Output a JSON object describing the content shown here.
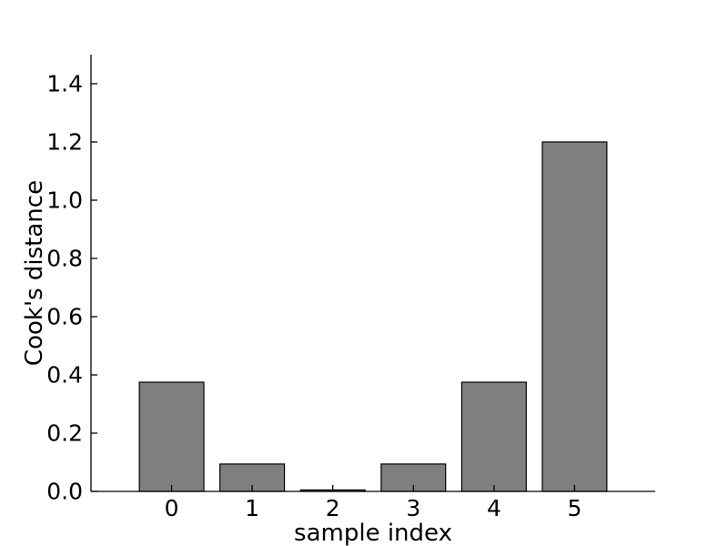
{
  "chart_data": {
    "type": "bar",
    "xlabel": "sample index",
    "ylabel": "Cook's distance",
    "categories": [
      "0",
      "1",
      "2",
      "3",
      "4",
      "5"
    ],
    "x": [
      0,
      1,
      2,
      3,
      4,
      5
    ],
    "values": [
      0.375,
      0.094,
      0.005,
      0.094,
      0.375,
      1.2
    ],
    "xlim": [
      -1,
      6
    ],
    "ylim": [
      0,
      1.5
    ],
    "yticks": [
      0.0,
      0.2,
      0.4,
      0.6,
      0.8,
      1.0,
      1.2,
      1.4
    ],
    "ytick_labels": [
      "0.0",
      "0.2",
      "0.4",
      "0.6",
      "0.8",
      "1.0",
      "1.2",
      "1.4"
    ],
    "bar_color": "#7f7f7f",
    "bar_edge_color": "#000000",
    "axis_color": "#000000",
    "background": "#ffffff",
    "grid": false,
    "legend": false,
    "tick_direction": "in"
  }
}
